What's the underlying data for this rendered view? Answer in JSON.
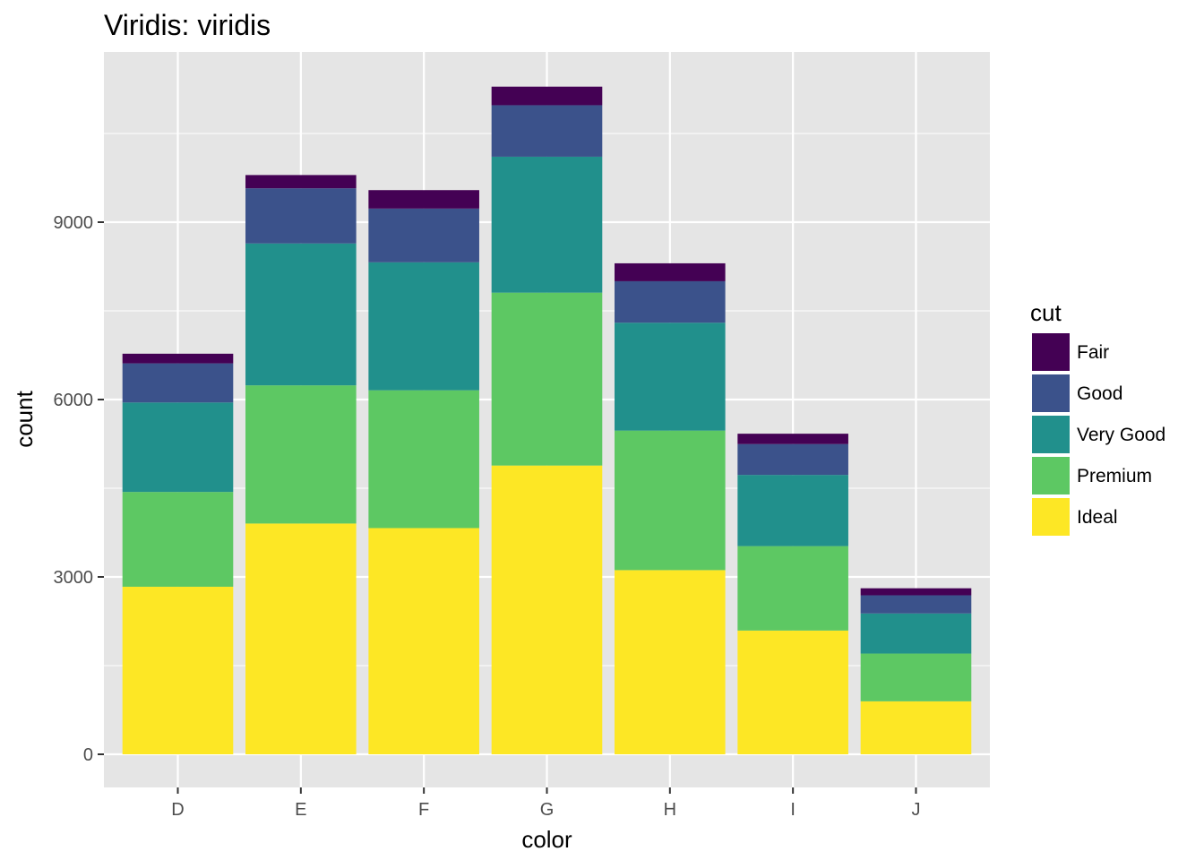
{
  "chart_data": {
    "type": "bar",
    "stacked": true,
    "title": "Viridis: viridis",
    "xlabel": "color",
    "ylabel": "count",
    "categories": [
      "D",
      "E",
      "F",
      "G",
      "H",
      "I",
      "J"
    ],
    "ylim": [
      0,
      11300
    ],
    "yticks": [
      0,
      3000,
      6000,
      9000
    ],
    "ytick_labels": [
      "0",
      "3000",
      "6000",
      "9000"
    ],
    "grid": true,
    "legend": {
      "title": "cut",
      "position": "right"
    },
    "series": [
      {
        "name": "Ideal",
        "color": "#FDE725",
        "values": [
          2834,
          3903,
          3826,
          4884,
          3115,
          2093,
          896
        ]
      },
      {
        "name": "Premium",
        "color": "#5DC863",
        "values": [
          1603,
          2337,
          2331,
          2924,
          2360,
          1428,
          808
        ]
      },
      {
        "name": "Very Good",
        "color": "#21908C",
        "values": [
          1513,
          2400,
          2164,
          2299,
          1824,
          1204,
          678
        ]
      },
      {
        "name": "Good",
        "color": "#3B528B",
        "values": [
          662,
          933,
          909,
          871,
          702,
          522,
          307
        ]
      },
      {
        "name": "Fair",
        "color": "#440154",
        "values": [
          163,
          224,
          312,
          314,
          303,
          175,
          119
        ]
      }
    ]
  },
  "colors": {
    "panel_background": "#E5E5E5",
    "gridline": "#FFFFFF",
    "tick_text": "#4D4D4D"
  }
}
